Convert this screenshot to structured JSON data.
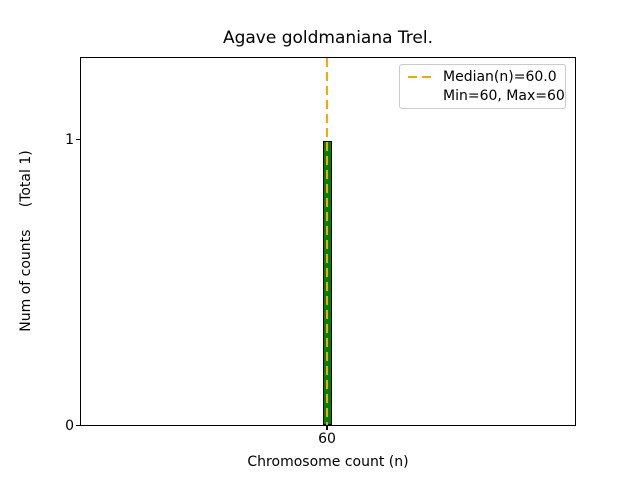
{
  "figure": {
    "background_color": "#ffffff",
    "ylabel_display": "Num of counts     (Total 1)",
    "yticks": [
      "0",
      "1"
    ],
    "xticks": [
      "60"
    ]
  },
  "chart_data": {
    "type": "bar",
    "title": "Agave goldmaniana Trel.",
    "xlabel": "Chromosome count (n)",
    "ylabel": "Num of counts (Total 1)",
    "categories": [
      60
    ],
    "values": [
      1
    ],
    "total_counts": 1,
    "median_n": 60.0,
    "min_n": 60,
    "max_n": 60,
    "bar_color": "#008000",
    "bar_edge_color": "#000000",
    "median_line_color": "#FFA500",
    "median_line_style": "dashed",
    "legend_entries": [
      "Median(n)=60.0",
      "Min=60, Max=60"
    ],
    "legend_position": "upper right",
    "xticks": [
      60
    ],
    "yticks": [
      0,
      1
    ],
    "ylim": [
      0,
      1.3
    ],
    "grid": false
  }
}
